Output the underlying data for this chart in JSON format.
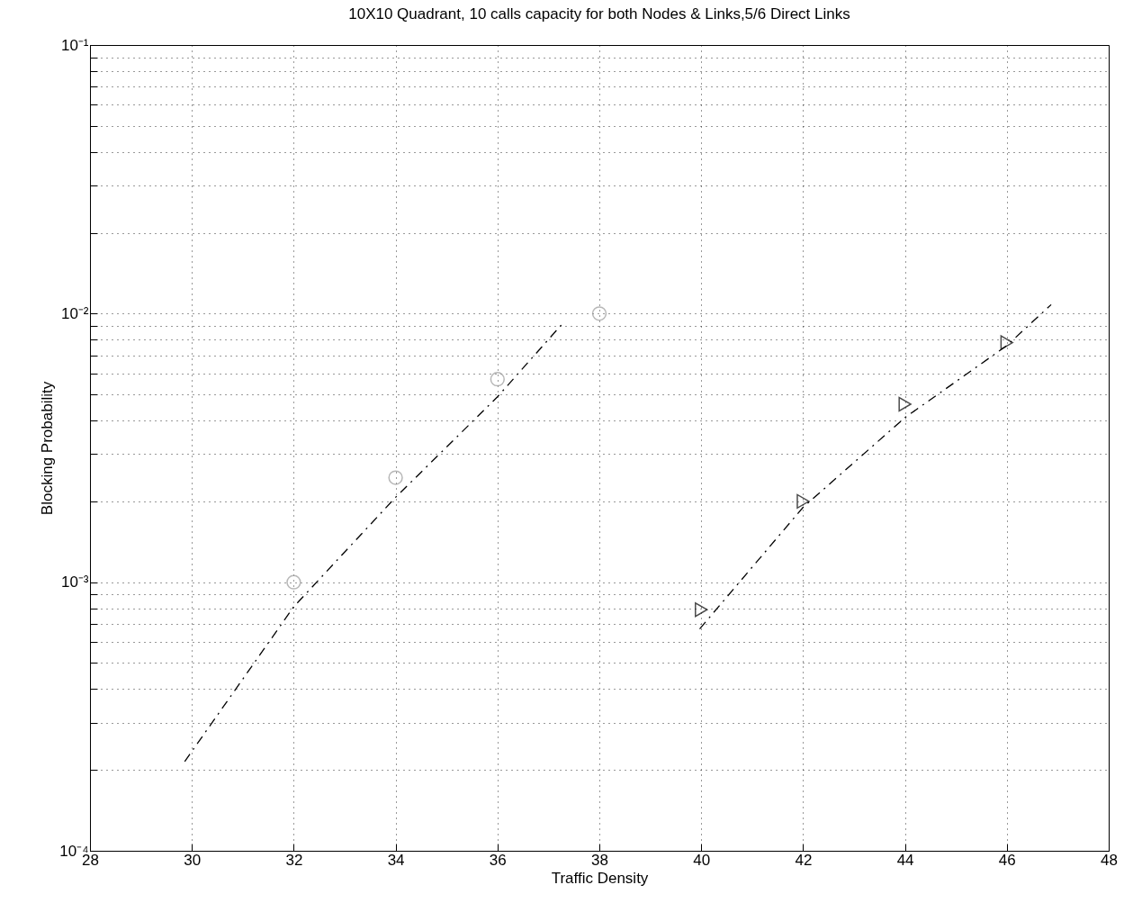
{
  "chart_data": {
    "type": "line",
    "title": "10X10 Quadrant, 10 calls capacity for both Nodes & Links,5/6 Direct Links",
    "xlabel": "Traffic Density",
    "ylabel": "Blocking Probability",
    "log": "y",
    "grid": true,
    "xlim": [
      28,
      48
    ],
    "xticks": [
      28,
      30,
      32,
      34,
      36,
      38,
      40,
      42,
      44,
      46,
      48
    ],
    "ylim": [
      0.0001,
      0.1
    ],
    "yticks": [
      {
        "value": 0.0001,
        "label": "10⁻⁴"
      },
      {
        "value": 0.0002,
        "label": null
      },
      {
        "value": 0.0003,
        "label": null
      },
      {
        "value": 0.0004,
        "label": null
      },
      {
        "value": 0.0005,
        "label": null
      },
      {
        "value": 0.0006,
        "label": null
      },
      {
        "value": 0.0007,
        "label": null
      },
      {
        "value": 0.0008,
        "label": null
      },
      {
        "value": 0.0009,
        "label": null
      },
      {
        "value": 0.001,
        "label": "10⁻³"
      },
      {
        "value": 0.002,
        "label": null
      },
      {
        "value": 0.003,
        "label": null
      },
      {
        "value": 0.004,
        "label": null
      },
      {
        "value": 0.005,
        "label": null
      },
      {
        "value": 0.006,
        "label": null
      },
      {
        "value": 0.007,
        "label": null
      },
      {
        "value": 0.008,
        "label": null
      },
      {
        "value": 0.009,
        "label": null
      },
      {
        "value": 0.01,
        "label": "10⁻²"
      },
      {
        "value": 0.02,
        "label": null
      },
      {
        "value": 0.03,
        "label": null
      },
      {
        "value": 0.04,
        "label": null
      },
      {
        "value": 0.05,
        "label": null
      },
      {
        "value": 0.06,
        "label": null
      },
      {
        "value": 0.07,
        "label": null
      },
      {
        "value": 0.08,
        "label": null
      },
      {
        "value": 0.09,
        "label": null
      },
      {
        "value": 0.1,
        "label": "10⁻¹"
      }
    ],
    "series": [
      {
        "type": "scatter",
        "marker": "circle",
        "color": "#999999",
        "x": [
          32,
          34,
          36,
          38
        ],
        "values": [
          0.001,
          0.00245,
          0.0057,
          0.01
        ]
      },
      {
        "line_style": "dashed",
        "marker": "none",
        "color": "#000000",
        "x": [
          29.86,
          32,
          34,
          36,
          37.26
        ],
        "values": [
          0.000215,
          0.00081,
          0.00207,
          0.0049,
          0.0091
        ]
      },
      {
        "type": "scatter",
        "marker": "triangle",
        "color": "#000000",
        "x": [
          40,
          42,
          44,
          46
        ],
        "values": [
          0.00079,
          0.002,
          0.0046,
          0.0078
        ]
      },
      {
        "line_style": "dashed",
        "marker": "none",
        "color": "#000000",
        "x": [
          39.97,
          42,
          44,
          46,
          46.87
        ],
        "values": [
          0.00067,
          0.0019,
          0.0041,
          0.0076,
          0.0108
        ]
      }
    ]
  }
}
